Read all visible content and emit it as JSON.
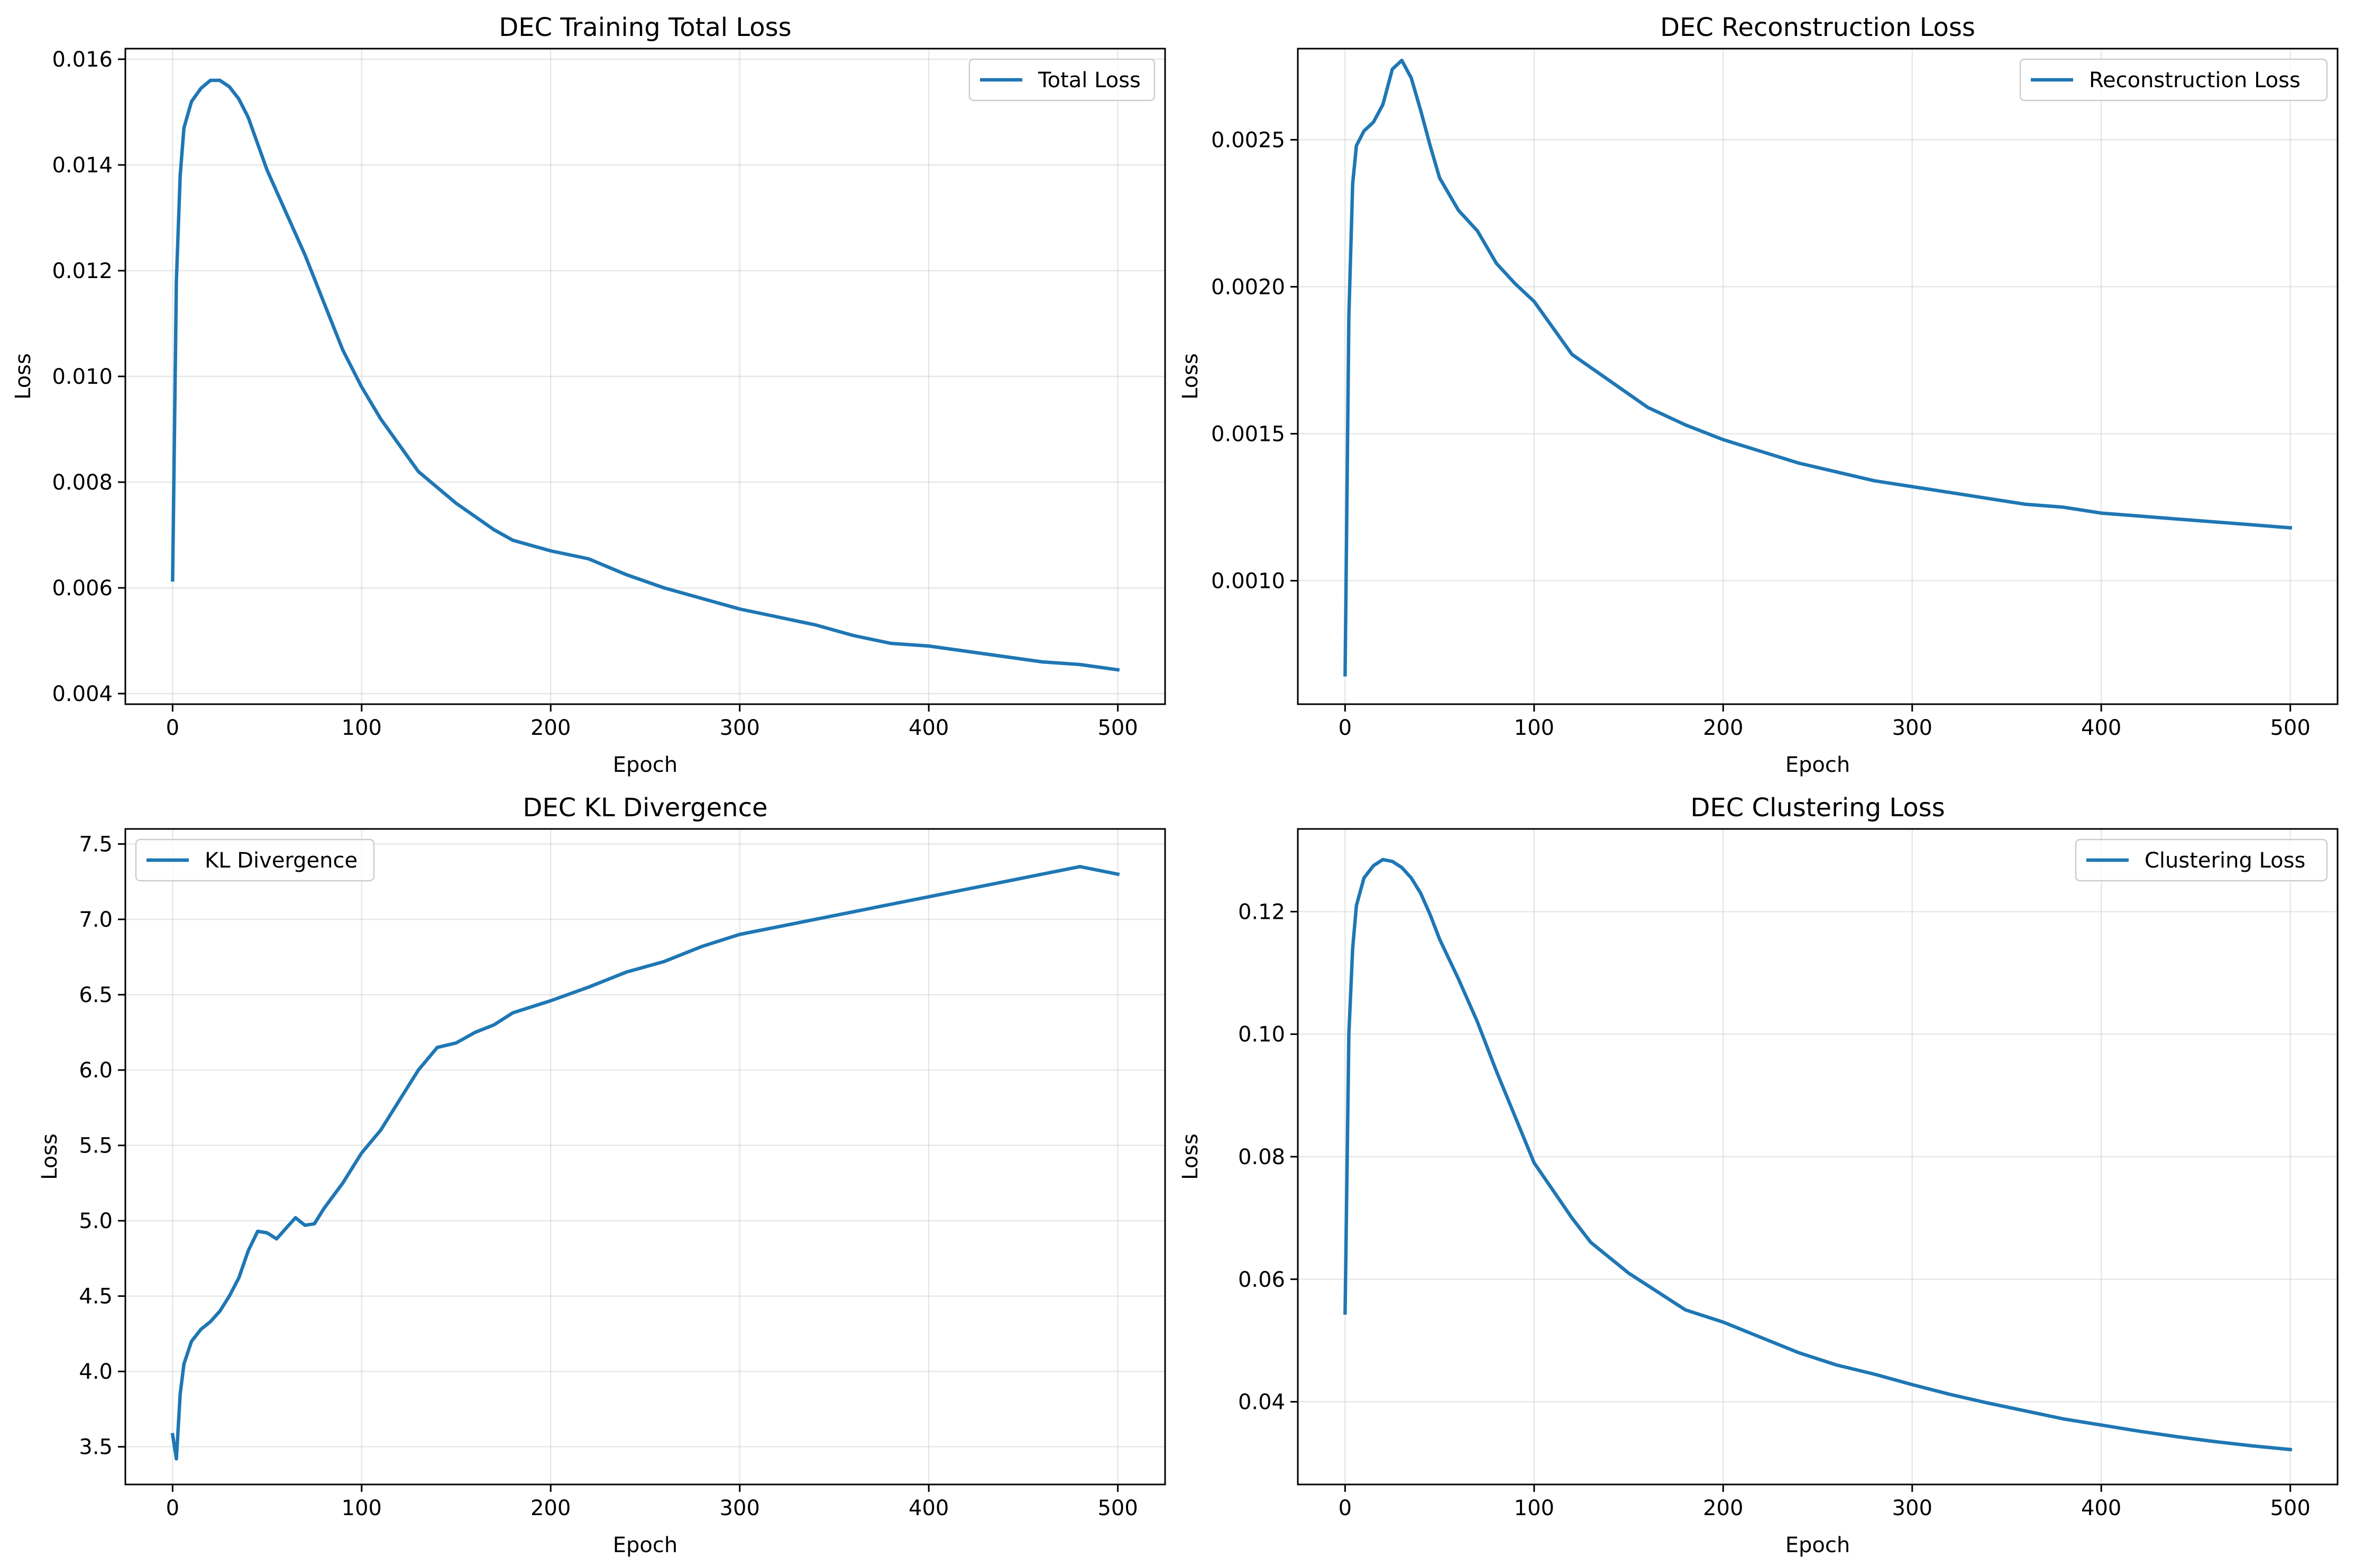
{
  "chart_data": [
    {
      "type": "line",
      "title": "DEC Training Total Loss",
      "xlabel": "Epoch",
      "ylabel": "Loss",
      "xlim": [
        -25,
        525
      ],
      "ylim": [
        0.0038,
        0.0162
      ],
      "xticks": [
        0,
        100,
        200,
        300,
        400,
        500
      ],
      "yticks": [
        0.004,
        0.006,
        0.008,
        0.01,
        0.012,
        0.014,
        0.016
      ],
      "ytick_labels": [
        "0.004",
        "0.006",
        "0.008",
        "0.010",
        "0.012",
        "0.014",
        "0.016"
      ],
      "grid": true,
      "legend_position": "upper-right",
      "series": [
        {
          "name": "Total Loss",
          "color": "#1f77b4",
          "x": [
            0,
            2,
            4,
            6,
            10,
            15,
            20,
            25,
            30,
            35,
            40,
            45,
            50,
            60,
            70,
            80,
            90,
            100,
            110,
            120,
            130,
            140,
            150,
            160,
            170,
            180,
            190,
            200,
            220,
            240,
            260,
            280,
            300,
            320,
            340,
            360,
            380,
            400,
            420,
            440,
            460,
            480,
            500
          ],
          "y": [
            0.00615,
            0.0118,
            0.0138,
            0.0147,
            0.0152,
            0.01545,
            0.0156,
            0.0156,
            0.01548,
            0.01525,
            0.0149,
            0.0144,
            0.0139,
            0.0131,
            0.0123,
            0.0114,
            0.0105,
            0.0098,
            0.0092,
            0.0087,
            0.0082,
            0.0079,
            0.0076,
            0.00735,
            0.0071,
            0.0069,
            0.0068,
            0.0067,
            0.00655,
            0.00625,
            0.006,
            0.0058,
            0.0056,
            0.00545,
            0.0053,
            0.0051,
            0.00495,
            0.0049,
            0.0048,
            0.0047,
            0.0046,
            0.00455,
            0.00445
          ]
        }
      ]
    },
    {
      "type": "line",
      "title": "DEC Reconstruction Loss",
      "xlabel": "Epoch",
      "ylabel": "Loss",
      "xlim": [
        -25,
        525
      ],
      "ylim": [
        0.00058,
        0.00281
      ],
      "xticks": [
        0,
        100,
        200,
        300,
        400,
        500
      ],
      "yticks": [
        0.001,
        0.0015,
        0.002,
        0.0025
      ],
      "ytick_labels": [
        "0.0010",
        "0.0015",
        "0.0020",
        "0.0025"
      ],
      "grid": true,
      "legend_position": "upper-right",
      "series": [
        {
          "name": "Reconstruction Loss",
          "color": "#1f77b4",
          "x": [
            0,
            2,
            4,
            6,
            10,
            15,
            20,
            25,
            30,
            35,
            40,
            45,
            50,
            60,
            70,
            80,
            90,
            100,
            120,
            140,
            160,
            180,
            200,
            220,
            240,
            260,
            280,
            300,
            320,
            340,
            360,
            380,
            400,
            420,
            440,
            460,
            480,
            500
          ],
          "y": [
            0.00068,
            0.0019,
            0.00235,
            0.00248,
            0.00253,
            0.00256,
            0.00262,
            0.00274,
            0.00277,
            0.00271,
            0.0026,
            0.00248,
            0.00237,
            0.00226,
            0.00219,
            0.00208,
            0.00201,
            0.00195,
            0.00177,
            0.00168,
            0.00159,
            0.00153,
            0.00148,
            0.00144,
            0.0014,
            0.00137,
            0.00134,
            0.00132,
            0.0013,
            0.00128,
            0.00126,
            0.00125,
            0.00123,
            0.00122,
            0.00121,
            0.0012,
            0.00119,
            0.00118
          ]
        }
      ]
    },
    {
      "type": "line",
      "title": "DEC KL Divergence",
      "xlabel": "Epoch",
      "ylabel": "Loss",
      "xlim": [
        -25,
        525
      ],
      "ylim": [
        3.25,
        7.6
      ],
      "xticks": [
        0,
        100,
        200,
        300,
        400,
        500
      ],
      "yticks": [
        3.5,
        4.0,
        4.5,
        5.0,
        5.5,
        6.0,
        6.5,
        7.0,
        7.5
      ],
      "ytick_labels": [
        "3.5",
        "4.0",
        "4.5",
        "5.0",
        "5.5",
        "6.0",
        "6.5",
        "7.0",
        "7.5"
      ],
      "grid": true,
      "legend_position": "upper-left",
      "series": [
        {
          "name": "KL Divergence",
          "color": "#1f77b4",
          "x": [
            0,
            2,
            4,
            6,
            10,
            15,
            20,
            25,
            30,
            35,
            40,
            45,
            50,
            55,
            60,
            65,
            70,
            75,
            80,
            90,
            100,
            110,
            120,
            130,
            140,
            150,
            160,
            170,
            180,
            190,
            200,
            220,
            240,
            260,
            280,
            300,
            320,
            340,
            360,
            380,
            400,
            420,
            440,
            460,
            480,
            500
          ],
          "y": [
            3.58,
            3.42,
            3.85,
            4.05,
            4.2,
            4.28,
            4.33,
            4.4,
            4.5,
            4.62,
            4.8,
            4.93,
            4.92,
            4.88,
            4.95,
            5.02,
            4.97,
            4.98,
            5.08,
            5.25,
            5.45,
            5.6,
            5.8,
            6.0,
            6.15,
            6.18,
            6.25,
            6.3,
            6.38,
            6.42,
            6.46,
            6.55,
            6.65,
            6.72,
            6.82,
            6.9,
            6.95,
            7.0,
            7.05,
            7.1,
            7.15,
            7.2,
            7.25,
            7.3,
            7.35,
            7.3
          ]
        }
      ]
    },
    {
      "type": "line",
      "title": "DEC Clustering Loss",
      "xlabel": "Epoch",
      "ylabel": "Loss",
      "xlim": [
        -25,
        525
      ],
      "ylim": [
        0.0265,
        0.1335
      ],
      "xticks": [
        0,
        100,
        200,
        300,
        400,
        500
      ],
      "yticks": [
        0.04,
        0.06,
        0.08,
        0.1,
        0.12
      ],
      "ytick_labels": [
        "0.04",
        "0.06",
        "0.08",
        "0.10",
        "0.12"
      ],
      "grid": true,
      "legend_position": "upper-right",
      "series": [
        {
          "name": "Clustering Loss",
          "color": "#1f77b4",
          "x": [
            0,
            2,
            4,
            6,
            10,
            15,
            20,
            25,
            30,
            35,
            40,
            45,
            50,
            60,
            70,
            80,
            90,
            100,
            110,
            120,
            130,
            140,
            150,
            160,
            170,
            180,
            190,
            200,
            220,
            240,
            260,
            280,
            300,
            320,
            340,
            360,
            380,
            400,
            420,
            440,
            460,
            480,
            500
          ],
          "y": [
            0.0545,
            0.1,
            0.114,
            0.121,
            0.1255,
            0.1275,
            0.1285,
            0.1282,
            0.1272,
            0.1255,
            0.123,
            0.1195,
            0.1155,
            0.109,
            0.102,
            0.094,
            0.0865,
            0.079,
            0.0745,
            0.07,
            0.066,
            0.0635,
            0.061,
            0.059,
            0.057,
            0.055,
            0.054,
            0.053,
            0.0505,
            0.048,
            0.046,
            0.0445,
            0.0428,
            0.0412,
            0.0398,
            0.0385,
            0.0372,
            0.0362,
            0.0352,
            0.0343,
            0.0335,
            0.0328,
            0.0322
          ]
        }
      ]
    }
  ]
}
